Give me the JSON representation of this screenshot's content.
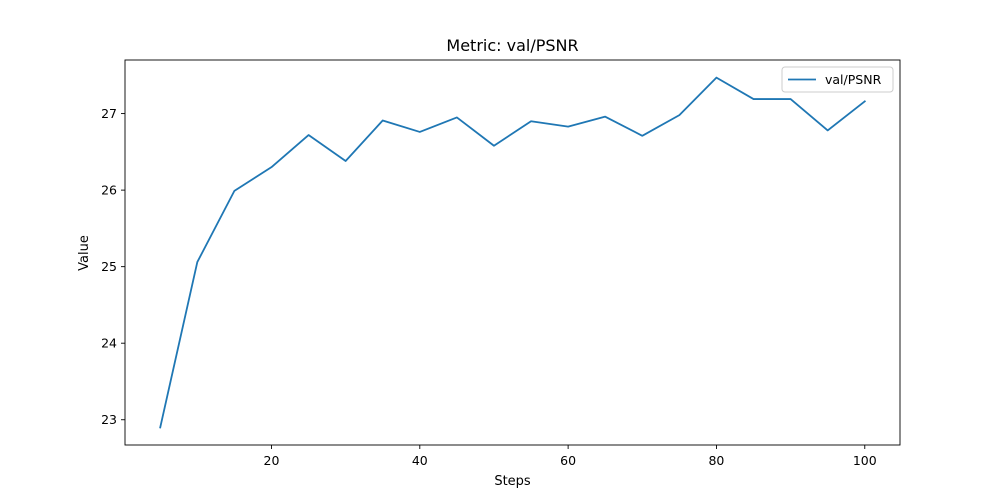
{
  "chart_data": {
    "type": "line",
    "title": "Metric: val/PSNR",
    "xlabel": "Steps",
    "ylabel": "Value",
    "xlim": [
      0.25,
      104.75
    ],
    "ylim": [
      22.67,
      27.7
    ],
    "xticks": [
      20,
      40,
      60,
      80,
      100
    ],
    "yticks": [
      23,
      24,
      25,
      26,
      27
    ],
    "grid": false,
    "legend_position": "top-right",
    "series": [
      {
        "name": "val/PSNR",
        "color": "#1f77b4",
        "x": [
          5,
          10,
          15,
          20,
          25,
          30,
          35,
          40,
          45,
          50,
          55,
          60,
          65,
          70,
          75,
          80,
          85,
          90,
          95,
          100
        ],
        "y": [
          22.9,
          25.06,
          25.99,
          26.3,
          26.72,
          26.38,
          26.91,
          26.76,
          26.95,
          26.58,
          26.9,
          26.83,
          26.96,
          26.71,
          26.98,
          27.47,
          27.19,
          27.19,
          26.78,
          27.16
        ]
      }
    ]
  }
}
